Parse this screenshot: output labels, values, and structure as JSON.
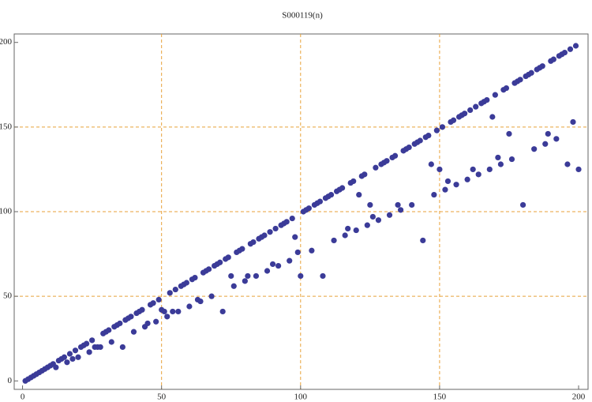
{
  "chart_data": {
    "type": "scatter",
    "title": "S000119(n)",
    "color": "#3b3b98",
    "x": [
      1,
      2,
      3,
      4,
      5,
      6,
      7,
      8,
      9,
      10,
      11,
      12,
      13,
      14,
      15,
      16,
      17,
      18,
      19,
      20,
      21,
      22,
      23,
      24,
      25,
      26,
      27,
      28,
      29,
      30,
      31,
      32,
      33,
      34,
      35,
      36,
      37,
      38,
      39,
      40,
      41,
      42,
      43,
      44,
      45,
      46,
      47,
      48,
      49,
      50,
      51,
      52,
      53,
      54,
      55,
      56,
      57,
      58,
      59,
      60,
      61,
      62,
      63,
      64,
      65,
      66,
      67,
      68,
      69,
      70,
      71,
      72,
      73,
      74,
      75,
      76,
      77,
      78,
      79,
      80,
      81,
      82,
      83,
      84,
      85,
      86,
      87,
      88,
      89,
      90,
      91,
      92,
      93,
      94,
      95,
      96,
      97,
      98,
      99,
      100,
      101,
      102,
      103,
      104,
      105,
      106,
      107,
      108,
      109,
      110,
      111,
      112,
      113,
      114,
      115,
      116,
      117,
      118,
      119,
      120,
      121,
      122,
      123,
      124,
      125,
      126,
      127,
      128,
      129,
      130,
      131,
      132,
      133,
      134,
      135,
      136,
      137,
      138,
      139,
      140,
      141,
      142,
      143,
      144,
      145,
      146,
      147,
      148,
      149,
      150,
      151,
      152,
      153,
      154,
      155,
      156,
      157,
      158,
      159,
      160,
      161,
      162,
      163,
      164,
      165,
      166,
      167,
      168,
      169,
      170,
      171,
      172,
      173,
      174,
      175,
      176,
      177,
      178,
      179,
      180,
      181,
      182,
      183,
      184,
      185,
      186,
      187,
      188,
      189,
      190,
      191,
      192,
      193,
      194,
      195,
      196,
      197,
      198,
      199,
      200
    ],
    "values": [
      0,
      1,
      2,
      3,
      4,
      5,
      6,
      7,
      8,
      9,
      10,
      8,
      12,
      13,
      14,
      11,
      16,
      13,
      18,
      14,
      20,
      21,
      22,
      17,
      24,
      20,
      20,
      20,
      28,
      29,
      30,
      23,
      32,
      33,
      34,
      20,
      36,
      37,
      38,
      29,
      40,
      41,
      42,
      32,
      34,
      45,
      46,
      35,
      48,
      42,
      41,
      38,
      52,
      41,
      54,
      41,
      56,
      57,
      58,
      44,
      60,
      61,
      48,
      47,
      64,
      65,
      66,
      50,
      68,
      69,
      70,
      41,
      72,
      73,
      62,
      56,
      76,
      77,
      78,
      59,
      62,
      81,
      82,
      62,
      84,
      85,
      86,
      65,
      88,
      69,
      90,
      68,
      92,
      93,
      94,
      71,
      96,
      85,
      76,
      62,
      100,
      101,
      102,
      77,
      104,
      105,
      106,
      62,
      108,
      109,
      110,
      83,
      112,
      113,
      114,
      86,
      90,
      117,
      118,
      89,
      110,
      121,
      122,
      92,
      104,
      97,
      126,
      95,
      128,
      129,
      130,
      98,
      132,
      133,
      104,
      101,
      136,
      137,
      138,
      104,
      140,
      141,
      142,
      83,
      144,
      145,
      128,
      110,
      148,
      125,
      150,
      113,
      118,
      153,
      154,
      116,
      156,
      157,
      158,
      119,
      160,
      125,
      162,
      122,
      164,
      165,
      166,
      125,
      156,
      169,
      132,
      128,
      172,
      173,
      146,
      131,
      176,
      177,
      178,
      104,
      180,
      181,
      182,
      137,
      184,
      185,
      186,
      140,
      146,
      189,
      190,
      143,
      192,
      193,
      194,
      128,
      196,
      153,
      198,
      125
    ],
    "xlim": [
      -3,
      203.4
    ],
    "ylim": [
      -5,
      205
    ],
    "xticks": [
      0,
      50,
      100,
      150,
      200
    ],
    "yticks": [
      0,
      50,
      100,
      150,
      200
    ],
    "xgrid": [
      50,
      100,
      150
    ],
    "ygrid": [
      50,
      100,
      150
    ]
  }
}
